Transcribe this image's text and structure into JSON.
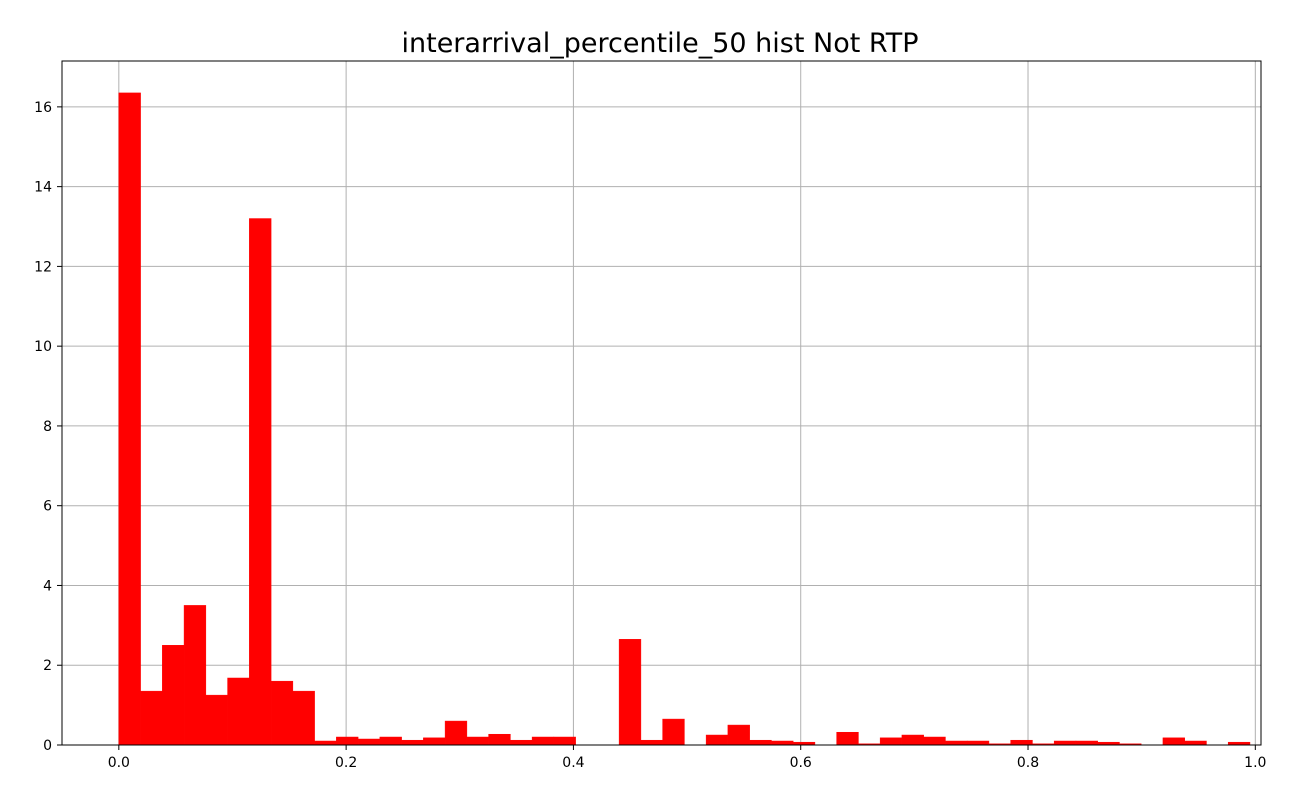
{
  "chart_data": {
    "type": "bar",
    "title": "interarrival_percentile_50 hist Not RTP",
    "xlabel": "",
    "ylabel": "",
    "bin_width": 0.01914,
    "bin_start": 0.0,
    "values": [
      16.35,
      1.35,
      2.5,
      3.5,
      1.25,
      1.68,
      13.2,
      1.6,
      1.35,
      0.1,
      0.2,
      0.15,
      0.2,
      0.12,
      0.18,
      0.6,
      0.2,
      0.27,
      0.12,
      0.2,
      0.2,
      0.0,
      0.0,
      2.65,
      0.12,
      0.65,
      0.0,
      0.25,
      0.5,
      0.12,
      0.1,
      0.07,
      0.0,
      0.32,
      0.03,
      0.18,
      0.25,
      0.2,
      0.1,
      0.1,
      0.03,
      0.12,
      0.03,
      0.1,
      0.1,
      0.07,
      0.03,
      0.0,
      0.18,
      0.1,
      0.0,
      0.07
    ],
    "bar_color": "#ff0000",
    "grid": true,
    "xlim": [
      -0.05,
      1.005
    ],
    "ylim": [
      0,
      17.15
    ],
    "xticks": [
      0.0,
      0.2,
      0.4,
      0.6,
      0.8,
      1.0
    ],
    "xtick_labels": [
      "0.0",
      "0.2",
      "0.4",
      "0.6",
      "0.8",
      "1.0"
    ],
    "yticks": [
      0,
      2,
      4,
      6,
      8,
      10,
      12,
      14,
      16
    ],
    "ytick_labels": [
      "0",
      "2",
      "4",
      "6",
      "8",
      "10",
      "12",
      "14",
      "16"
    ]
  }
}
